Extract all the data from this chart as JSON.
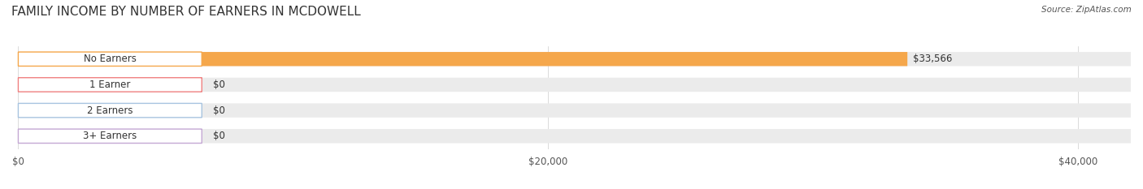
{
  "title": "FAMILY INCOME BY NUMBER OF EARNERS IN MCDOWELL",
  "source": "Source: ZipAtlas.com",
  "categories": [
    "No Earners",
    "1 Earner",
    "2 Earners",
    "3+ Earners"
  ],
  "values": [
    33566,
    0,
    0,
    0
  ],
  "bar_colors": [
    "#F5A74B",
    "#F08080",
    "#A8C4E0",
    "#C4A8D4"
  ],
  "bar_bg_colors": [
    "#F0F0F0",
    "#F0F0F0",
    "#F0F0F0",
    "#F0F0F0"
  ],
  "label_colors": [
    "#F5A74B",
    "#F08080",
    "#A8C4E0",
    "#C4A8D4"
  ],
  "xlim": [
    0,
    42000
  ],
  "xticks": [
    0,
    20000,
    40000
  ],
  "xtick_labels": [
    "$0",
    "$20,000",
    "$40,000"
  ],
  "value_labels": [
    "$33,566",
    "$0",
    "$0",
    "$0"
  ],
  "background_color": "#FFFFFF",
  "title_fontsize": 11,
  "bar_height": 0.55,
  "figsize": [
    14.06,
    2.33
  ],
  "dpi": 100
}
